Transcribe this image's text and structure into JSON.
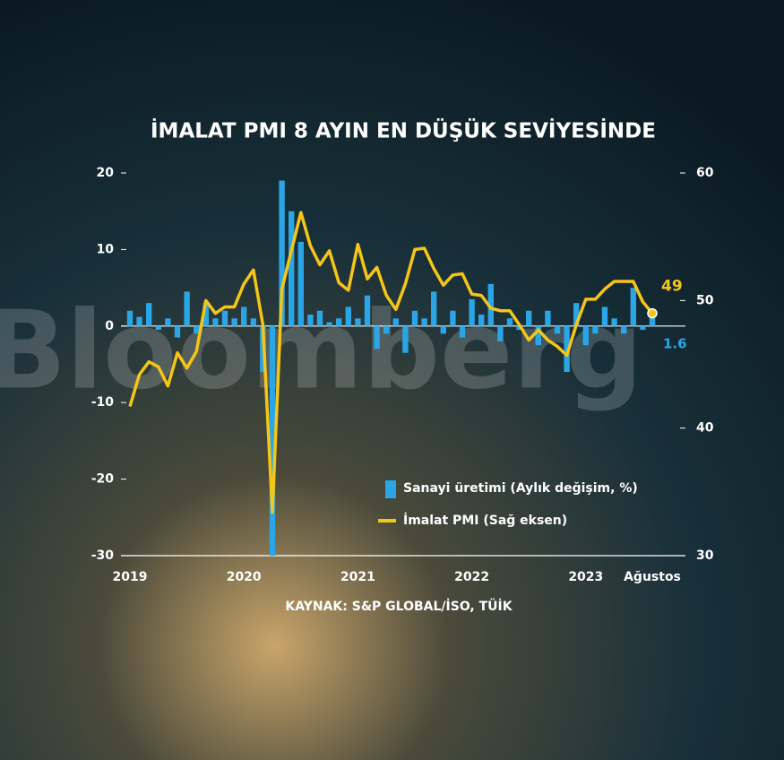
{
  "chart_data": {
    "type": "bar_line",
    "title": "İMALAT PMI 8 AYIN EN DÜŞÜK SEVİYESİNDE",
    "source": "KAYNAK: S&P GLOBAL/İSO, TÜİK",
    "watermark": "Bloomberg",
    "categories": [
      "2019",
      null,
      null,
      null,
      null,
      null,
      null,
      null,
      null,
      null,
      null,
      null,
      "2020",
      null,
      null,
      null,
      null,
      null,
      null,
      null,
      null,
      null,
      null,
      null,
      "2021",
      null,
      null,
      null,
      null,
      null,
      null,
      null,
      null,
      null,
      null,
      null,
      "2022",
      null,
      null,
      null,
      null,
      null,
      null,
      null,
      null,
      null,
      null,
      null,
      "2023",
      null,
      null,
      null,
      null,
      null,
      null,
      "Ağustos"
    ],
    "series": [
      {
        "name": "Sanayi üretimi (Aylık değişim, %)",
        "color": "#2aa6e6",
        "kind": "bar",
        "axis": "y",
        "values": [
          2,
          1.2,
          3,
          -0.5,
          1,
          -1.5,
          4.5,
          -1,
          3,
          1,
          2,
          1,
          2.5,
          1,
          -6,
          -30,
          19,
          15,
          11,
          1.5,
          2,
          0.5,
          1,
          2.5,
          1,
          4,
          -3,
          -1,
          1,
          -3.5,
          2,
          1,
          4.5,
          -1,
          2,
          -1.5,
          3.5,
          1.5,
          5.5,
          -2,
          1,
          -0.5,
          2,
          -2.5,
          2,
          -1,
          -6,
          3,
          -2.5,
          -1,
          2.5,
          1,
          -1,
          5,
          -0.5,
          1.6
        ]
      },
      {
        "name": "İmalat PMI (Sağ eksen)",
        "color": "#f5c518",
        "kind": "line",
        "axis": "y2",
        "values": [
          41.7,
          44.2,
          45.2,
          44.8,
          43.3,
          45.9,
          44.7,
          46.0,
          50.0,
          49.0,
          49.5,
          49.5,
          51.3,
          52.4,
          48.1,
          33.4,
          50.9,
          53.9,
          56.9,
          54.3,
          52.8,
          53.9,
          51.4,
          50.8,
          54.4,
          51.7,
          52.6,
          50.4,
          49.3,
          51.3,
          54.0,
          54.1,
          52.5,
          51.2,
          52.0,
          52.1,
          50.5,
          50.4,
          49.4,
          49.2,
          49.2,
          48.1,
          46.9,
          47.7,
          46.9,
          46.4,
          45.7,
          48.1,
          50.1,
          50.1,
          50.9,
          51.5,
          51.5,
          51.5,
          49.9,
          49
        ]
      }
    ],
    "ylim": [
      -30,
      20
    ],
    "yticks": [
      -30,
      -20,
      -10,
      0,
      10,
      20
    ],
    "y2lim": [
      30,
      60
    ],
    "y2ticks": [
      30,
      40,
      50,
      60
    ]
  }
}
